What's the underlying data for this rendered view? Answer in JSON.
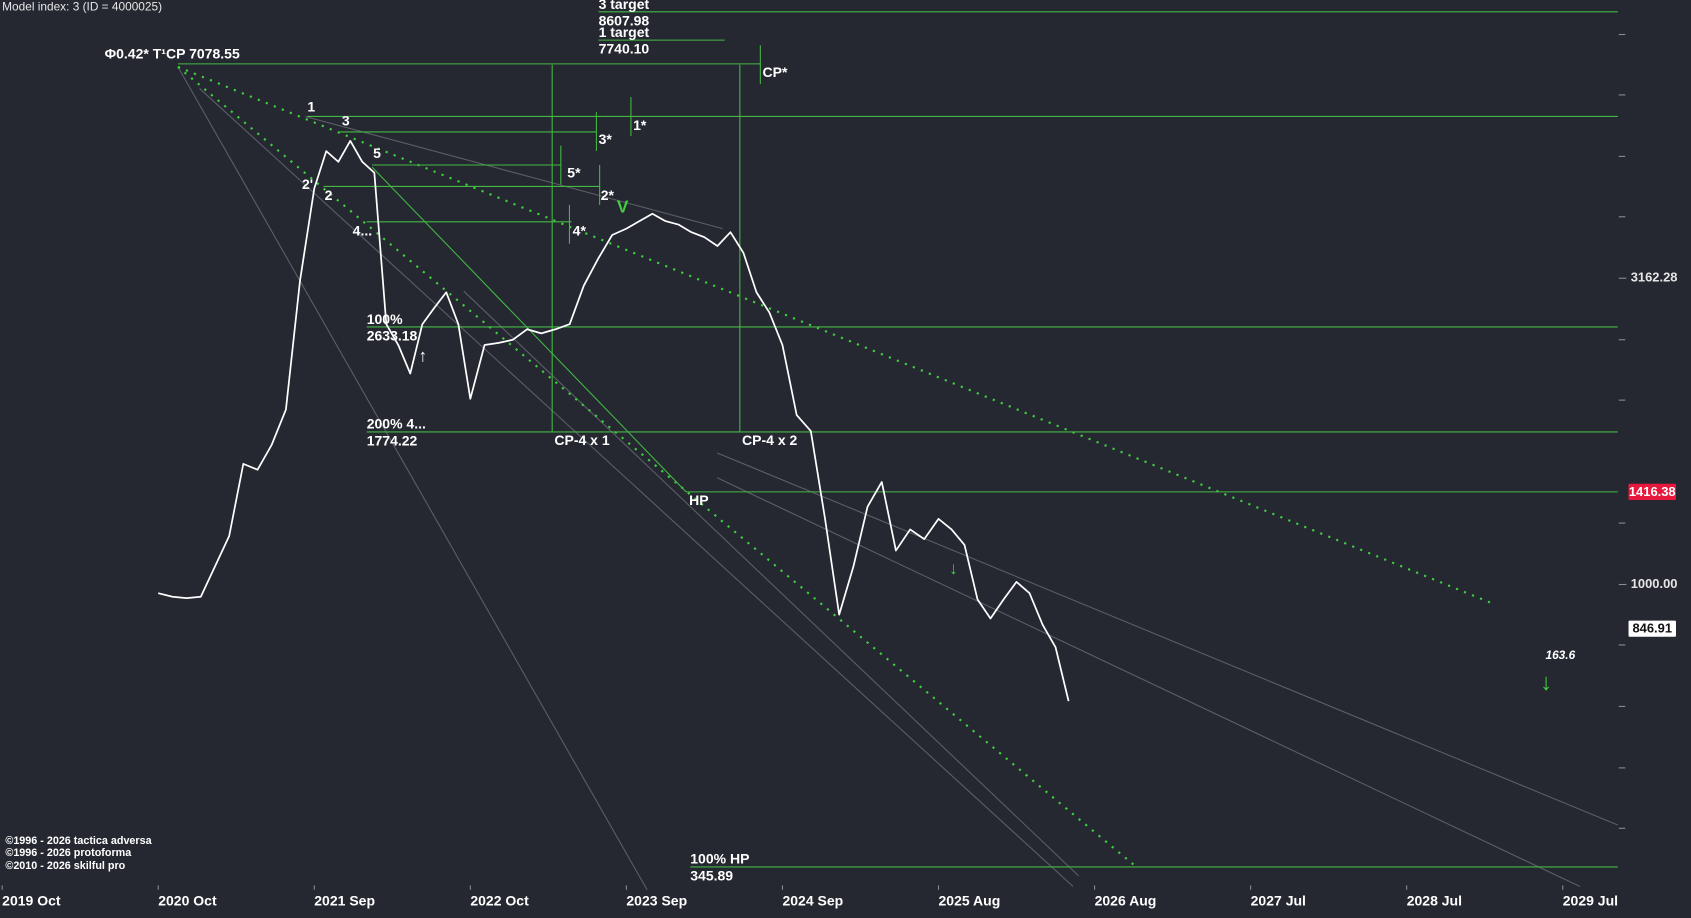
{
  "chart_data": {
    "type": "line",
    "title": "Model index: 3  (ID = 4000025)",
    "log_scale": true,
    "color": "#ffffff",
    "level_color": "#43b843",
    "ylim": [
      320,
      9000
    ],
    "yticks": [
      3162.28,
      {
        "value": 1000,
        "label": "1000.00"
      }
    ],
    "xticks": [
      {
        "value": "2019-10",
        "label": "2019 Oct"
      },
      {
        "value": "2020-10",
        "label": "2020 Oct"
      },
      {
        "value": "2021-09",
        "label": "2021 Sep"
      },
      {
        "value": "2022-10",
        "label": "2022 Oct"
      },
      {
        "value": "2023-09",
        "label": "2023 Sep"
      },
      {
        "value": "2024-09",
        "label": "2024 Sep"
      },
      {
        "value": "2025-08",
        "label": "2025 Aug"
      },
      {
        "value": "2026-08",
        "label": "2026 Aug"
      },
      {
        "value": "2027-07",
        "label": "2027 Jul"
      },
      {
        "value": "2028-07",
        "label": "2028 Jul"
      },
      {
        "value": "2029-07",
        "label": "2029 Jul"
      }
    ],
    "x": [
      "2020-10",
      "2020-11",
      "2020-12",
      "2021-01",
      "2021-02",
      "2021-03",
      "2021-04",
      "2021-05",
      "2021-06",
      "2021-07",
      "2021-08",
      "2021-09",
      "2021-10",
      "2021-11",
      "2021-12",
      "2022-01",
      "2022-02",
      "2022-03",
      "2022-04",
      "2022-05",
      "2022-06",
      "2022-07",
      "2022-08",
      "2022-09",
      "2022-10",
      "2022-11",
      "2022-12",
      "2023-01",
      "2023-02",
      "2023-03",
      "2023-04",
      "2023-05",
      "2023-06",
      "2023-07",
      "2023-08",
      "2023-09",
      "2023-10",
      "2023-11",
      "2023-12",
      "2024-01",
      "2024-02",
      "2024-03",
      "2024-04",
      "2024-05",
      "2024-06",
      "2024-07",
      "2024-08",
      "2024-09",
      "2024-10",
      "2024-11",
      "2024-12",
      "2025-01",
      "2025-02",
      "2025-03",
      "2025-04",
      "2025-05",
      "2025-06",
      "2025-07",
      "2025-08",
      "2025-09",
      "2025-10",
      "2025-11",
      "2025-12",
      "2026-01",
      "2026-02",
      "2026-03",
      "2026-04",
      "2026-05",
      "2026-06"
    ],
    "values": [
      968,
      955,
      950,
      955,
      1070,
      1200,
      1574,
      1540,
      1690,
      1930,
      3135,
      4430,
      5100,
      4900,
      5300,
      4900,
      4700,
      2660,
      2460,
      2210,
      2660,
      2830,
      3000,
      2660,
      2010,
      2460,
      2480,
      2510,
      2610,
      2570,
      2610,
      2660,
      3075,
      3400,
      3720,
      3810,
      3920,
      4030,
      3920,
      3870,
      3760,
      3690,
      3570,
      3760,
      3480,
      3000,
      2780,
      2460,
      1890,
      1780,
      1280,
      893,
      1070,
      1340,
      1470,
      1136,
      1230,
      1186,
      1280,
      1230,
      1160,
      945,
      880,
      945,
      1010,
      968,
      860,
      790,
      645
    ],
    "levels": [
      {
        "value": 8607.98
      },
      {
        "value": 7740.1,
        "label": "7740.10"
      },
      {
        "value": 7078.55
      },
      {
        "value": 5810
      },
      {
        "value": 5480
      },
      {
        "value": 4840
      },
      {
        "value": 4465
      },
      {
        "value": 3910
      },
      {
        "value": 2633.18
      },
      {
        "value": 1774.22
      },
      {
        "value": 1416.38
      },
      {
        "value": 345.89
      }
    ],
    "price_boxes": [
      {
        "value": 1416.38,
        "color": "#e8183c"
      },
      {
        "value": 846.91,
        "color": "#ffffff"
      }
    ],
    "annotations": [
      "3 target",
      "1 target",
      "Φ0.42* T¹CP  7078.55",
      "CP*",
      "1",
      "3",
      "5",
      "2'",
      "2",
      "4...",
      "1*",
      "3*",
      "5*",
      "2*",
      "4*",
      "V",
      "100%",
      "↑",
      "200%  4...",
      "CP-4 x 1",
      "CP-4 x 2",
      "HP",
      "100% HP",
      "↓",
      "163.6",
      "↓",
      "©1996 - 2026 tactica adversa",
      "©1996 - 2026 protoforma",
      "©2010 - 2026 skilful pro"
    ]
  }
}
